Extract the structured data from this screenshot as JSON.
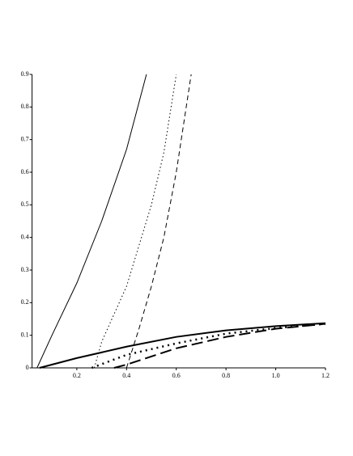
{
  "chart_data": {
    "type": "line",
    "xlim": [
      0.02,
      1.2
    ],
    "ylim": [
      0,
      0.9
    ],
    "xticks": [
      0.2,
      0.4,
      0.6,
      0.8,
      {
        "value": 1,
        "label": "1.0"
      },
      1.2
    ],
    "yticks": [
      0,
      0.1,
      0.2,
      0.3,
      0.4,
      0.5,
      0.6,
      0.7,
      0.8,
      0.9
    ],
    "series": [
      {
        "color": "#000000",
        "dash": "solid",
        "width": 1,
        "x": [
          0.04,
          0.1,
          0.2,
          0.3,
          0.4,
          0.48
        ],
        "values": [
          0,
          0.1,
          0.26,
          0.45,
          0.67,
          0.9
        ]
      },
      {
        "color": "#000000",
        "dash": "dot",
        "width": 1,
        "x": [
          0.27,
          0.3,
          0.4,
          0.5,
          0.55,
          0.6
        ],
        "values": [
          0,
          0.08,
          0.25,
          0.5,
          0.66,
          0.9
        ]
      },
      {
        "color": "#000000",
        "dash": "dash",
        "width": 1,
        "x": [
          0.4,
          0.45,
          0.5,
          0.55,
          0.6,
          0.66
        ],
        "values": [
          0,
          0.12,
          0.25,
          0.4,
          0.6,
          0.9
        ]
      },
      {
        "color": "#000000",
        "dash": "solid",
        "width": 2,
        "x": [
          0.05,
          0.2,
          0.4,
          0.6,
          0.8,
          1.0,
          1.2
        ],
        "values": [
          0,
          0.03,
          0.065,
          0.095,
          0.115,
          0.128,
          0.137
        ]
      },
      {
        "color": "#000000",
        "dash": "dot",
        "width": 2.5,
        "x": [
          0.26,
          0.4,
          0.6,
          0.8,
          1.0,
          1.2
        ],
        "values": [
          0,
          0.04,
          0.075,
          0.105,
          0.122,
          0.135
        ]
      },
      {
        "color": "#000000",
        "dash": "dash",
        "width": 2,
        "x": [
          0.35,
          0.4,
          0.6,
          0.8,
          1.0,
          1.2
        ],
        "values": [
          0,
          0.01,
          0.06,
          0.095,
          0.12,
          0.135
        ]
      }
    ]
  }
}
